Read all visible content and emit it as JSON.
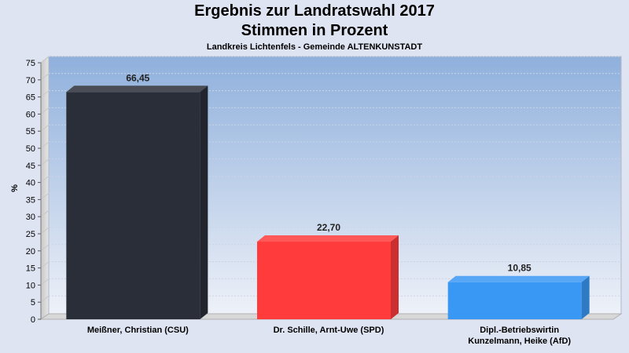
{
  "chart_data": {
    "type": "bar",
    "title": "Ergebnis zur Landratswahl 2017",
    "subtitle": "Stimmen in Prozent",
    "caption": "Landkreis Lichtenfels - Gemeinde ALTENKUNSTADT",
    "ylabel": "%",
    "ylim": [
      0,
      75
    ],
    "ytick_step": 5,
    "yticks": [
      "0",
      "5",
      "10",
      "15",
      "20",
      "25",
      "30",
      "35",
      "40",
      "45",
      "50",
      "55",
      "60",
      "65",
      "70",
      "75"
    ],
    "categories": [
      [
        "Meißner, Christian (CSU)"
      ],
      [
        "Dr. Schille, Arnt-Uwe (SPD)"
      ],
      [
        "Dipl.-Betriebswirtin",
        "Kunzelmann, Heike (AfD)"
      ]
    ],
    "values": [
      66.45,
      22.7,
      10.85
    ],
    "value_labels": [
      "66,45",
      "22,70",
      "10,85"
    ],
    "colors": [
      "#2a2e38",
      "#ff3b3b",
      "#3a98f5"
    ],
    "grid": true
  }
}
